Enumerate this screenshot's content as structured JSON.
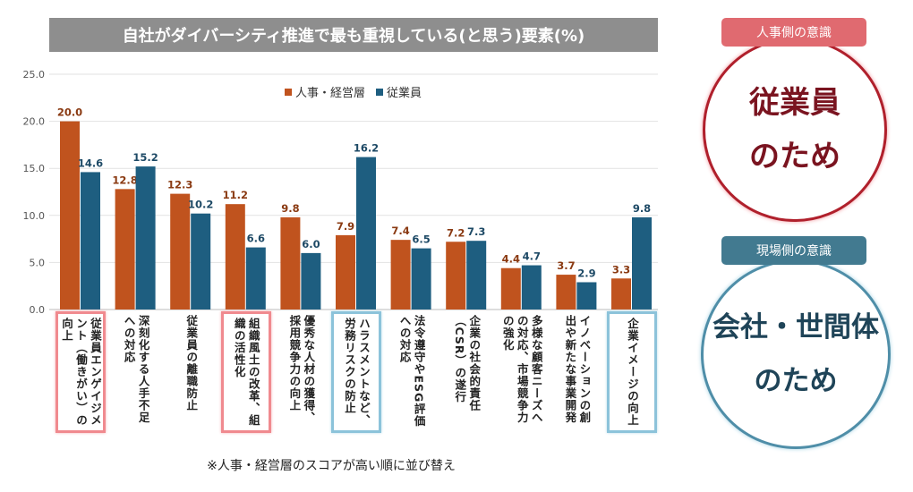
{
  "chart_data": {
    "type": "bar",
    "title": "自社がダイバーシティ推進で最も重視している(と思う)要素(%)",
    "categories": [
      "従業員エンゲイジメント（働きがい）の向上",
      "深刻化する人手不足への対応",
      "従業員の離職防止",
      "組織風土の改革、組織の活性化",
      "優秀な人材の獲得、採用競争力の向上",
      "ハラスメントなど、労務リスクの防止",
      "法令遵守やESG評価への対応",
      "企業の社会的責任（CSR）の遂行",
      "多様な顧客ニーズへの対応、市場競争力の強化",
      "イノベーションの創出や新たな事業開発",
      "企業イメージの向上"
    ],
    "highlight": [
      "red",
      "",
      "",
      "red",
      "",
      "blue",
      "",
      "",
      "",
      "",
      "blue"
    ],
    "series": [
      {
        "name": "人事・経営層",
        "color": "#c0531e",
        "values": [
          20.0,
          12.8,
          12.3,
          11.2,
          9.8,
          7.9,
          7.4,
          7.2,
          4.4,
          3.7,
          3.3
        ]
      },
      {
        "name": "従業員",
        "color": "#1e5e80",
        "values": [
          14.6,
          15.2,
          10.2,
          6.6,
          6.0,
          16.2,
          6.5,
          7.3,
          4.7,
          2.9,
          9.8
        ]
      }
    ],
    "ylim": [
      0,
      25
    ],
    "yticks": [
      "0.0",
      "5.0",
      "10.0",
      "15.0",
      "20.0",
      "25.0"
    ],
    "grid": true,
    "legend": "top-center"
  },
  "footnote": "※人事・経営層のスコアが高い順に並び替え",
  "side": {
    "hr": {
      "badge": "人事側の意識",
      "line1": "従業員",
      "line2": "のため",
      "color": "#b0202c"
    },
    "field": {
      "badge": "現場側の意識",
      "line1": "会社・世間体",
      "line2": "のため",
      "color": "#3f6f86"
    }
  }
}
